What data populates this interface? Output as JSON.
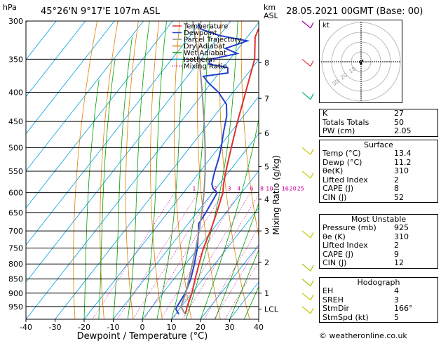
{
  "header": {
    "hpa_unit": "hPa",
    "location": "45°26'N  9°17'E  107m  ASL",
    "km_unit_1": "km",
    "km_unit_2": "ASL",
    "datetime": "28.05.2021  00GMT  (Base: 00)"
  },
  "legend": [
    {
      "label": "Temperature",
      "color": "#e03030",
      "dash": ""
    },
    {
      "label": "Dewpoint",
      "color": "#2040d0",
      "dash": ""
    },
    {
      "label": "Parcel Trajectory",
      "color": "#909090",
      "dash": ""
    },
    {
      "label": "Dry Adiabat",
      "color": "#e08000",
      "dash": ""
    },
    {
      "label": "Wet Adiabat",
      "color": "#00a000",
      "dash": ""
    },
    {
      "label": "Isotherm",
      "color": "#00a0e0",
      "dash": ""
    },
    {
      "label": "Mixing Ratio",
      "color": "#d000a0",
      "dash": "1,2"
    }
  ],
  "chart_data": {
    "type": "line",
    "xlabel": "Dewpoint / Temperature (°C)",
    "ylabel": "Mixing Ratio (g/kg)",
    "x_ticks": [
      -40,
      -30,
      -20,
      -10,
      0,
      10,
      20,
      30,
      40
    ],
    "pressure_levels": [
      300,
      350,
      400,
      450,
      500,
      550,
      600,
      650,
      700,
      750,
      800,
      850,
      900,
      950
    ],
    "xlim": [
      -40,
      40
    ],
    "ylim_hpa": [
      1000,
      300
    ],
    "y_scale": "log",
    "km_ticks": [
      {
        "label": "8",
        "p": 355
      },
      {
        "label": "7",
        "p": 410
      },
      {
        "label": "6",
        "p": 472
      },
      {
        "label": "5",
        "p": 540
      },
      {
        "label": "4",
        "p": 616
      },
      {
        "label": "3",
        "p": 700
      },
      {
        "label": "2",
        "p": 795
      },
      {
        "label": "1",
        "p": 900
      },
      {
        "label": "LCL",
        "p": 960
      }
    ],
    "mixing_ratio_labels": [
      {
        "label": "1",
        "x": -16.3
      },
      {
        "label": "2",
        "x": -9.0
      },
      {
        "label": "3",
        "x": -4.2
      },
      {
        "label": "4",
        "x": -0.9
      },
      {
        "label": "6",
        "x": 3.5
      },
      {
        "label": "8",
        "x": 7.0
      },
      {
        "label": "10",
        "x": 9.6
      },
      {
        "label": "16",
        "x": 15.0
      },
      {
        "label": "20",
        "x": 17.6
      },
      {
        "label": "25",
        "x": 20.3
      }
    ],
    "series": [
      {
        "name": "Temperature",
        "color": "#e03030",
        "points": [
          [
            13.4,
            980
          ],
          [
            12.0,
            950
          ],
          [
            10.0,
            900
          ],
          [
            7.3,
            850
          ],
          [
            4.6,
            800
          ],
          [
            1.8,
            750
          ],
          [
            -0.4,
            700
          ],
          [
            -3.2,
            650
          ],
          [
            -6.4,
            600
          ],
          [
            -8.5,
            580
          ],
          [
            -11.2,
            550
          ],
          [
            -15.7,
            500
          ],
          [
            -20.6,
            450
          ],
          [
            -25.7,
            400
          ],
          [
            -31.5,
            350
          ],
          [
            -37.3,
            320
          ],
          [
            -38.3,
            310
          ],
          [
            -38.7,
            300
          ]
        ]
      },
      {
        "name": "Dewpoint",
        "color": "#2040d0",
        "points": [
          [
            11.2,
            980
          ],
          [
            8.8,
            960
          ],
          [
            8.5,
            950
          ],
          [
            7.7,
            900
          ],
          [
            5.8,
            850
          ],
          [
            3.0,
            800
          ],
          [
            -0.3,
            750
          ],
          [
            -4.5,
            700
          ],
          [
            -6.4,
            680
          ],
          [
            -6.9,
            650
          ],
          [
            -8.4,
            600
          ],
          [
            -10.9,
            590
          ],
          [
            -12.5,
            580
          ],
          [
            -14.2,
            560
          ],
          [
            -15.0,
            550
          ],
          [
            -17.3,
            520
          ],
          [
            -19.2,
            500
          ],
          [
            -22.5,
            470
          ],
          [
            -25.8,
            440
          ],
          [
            -29.0,
            420
          ],
          [
            -35.0,
            400
          ],
          [
            -41.0,
            385
          ],
          [
            -44.5,
            375
          ],
          [
            -37.0,
            370
          ],
          [
            -38.5,
            362
          ],
          [
            -46.0,
            357
          ],
          [
            -46.5,
            350
          ],
          [
            -39.0,
            342
          ],
          [
            -44.5,
            335
          ],
          [
            -39.0,
            325
          ],
          [
            -50.0,
            318
          ],
          [
            -58.0,
            310
          ],
          [
            -60.5,
            303
          ]
        ]
      },
      {
        "name": "Parcel Trajectory",
        "color": "#909090",
        "points": [
          [
            13.4,
            980
          ],
          [
            11.0,
            960
          ],
          [
            9.8,
            950
          ],
          [
            7.9,
            900
          ],
          [
            5.2,
            850
          ],
          [
            2.3,
            800
          ],
          [
            -0.8,
            750
          ],
          [
            -4.3,
            700
          ],
          [
            -8.3,
            650
          ],
          [
            -12.9,
            600
          ],
          [
            -18.3,
            550
          ],
          [
            -24.7,
            500
          ],
          [
            -32.1,
            450
          ],
          [
            -40.6,
            400
          ],
          [
            -50.5,
            350
          ],
          [
            -58.0,
            320
          ],
          [
            -63.0,
            300
          ]
        ]
      }
    ],
    "wind_barbs": [
      {
        "p": 300,
        "color": "#a000a0"
      },
      {
        "p": 350,
        "color": "#e03030"
      },
      {
        "p": 400,
        "color": "#00b070"
      },
      {
        "p": 500,
        "color": "#c8c800"
      },
      {
        "p": 550,
        "color": "#c8c800"
      },
      {
        "p": 700,
        "color": "#c8c800"
      },
      {
        "p": 800,
        "color": "#a0c800"
      },
      {
        "p": 850,
        "color": "#a0c800"
      },
      {
        "p": 900,
        "color": "#c8c800"
      },
      {
        "p": 950,
        "color": "#c8c800"
      }
    ],
    "hodograph": {
      "unit_label": "kt",
      "ring_labels": [
        "10",
        "20",
        "30"
      ]
    }
  },
  "indices": {
    "rows": [
      {
        "k": "K",
        "v": "27"
      },
      {
        "k": "Totals Totals",
        "v": "50"
      },
      {
        "k": "PW (cm)",
        "v": "2.05"
      }
    ]
  },
  "surface": {
    "title": "Surface",
    "rows": [
      {
        "k": "Temp (°C)",
        "v": "13.4"
      },
      {
        "k": "Dewp (°C)",
        "v": "11.2"
      },
      {
        "k": "θe(K)",
        "v": "310"
      },
      {
        "k": "Lifted Index",
        "v": "2"
      },
      {
        "k": "CAPE (J)",
        "v": "8"
      },
      {
        "k": "CIN (J)",
        "v": "52"
      }
    ]
  },
  "most_unstable": {
    "title": "Most Unstable",
    "rows": [
      {
        "k": "Pressure (mb)",
        "v": "925"
      },
      {
        "k": "θe (K)",
        "v": "310"
      },
      {
        "k": "Lifted Index",
        "v": "2"
      },
      {
        "k": "CAPE (J)",
        "v": "9"
      },
      {
        "k": "CIN (J)",
        "v": "12"
      }
    ]
  },
  "hodograph_table": {
    "title": "Hodograph",
    "rows": [
      {
        "k": "EH",
        "v": "4"
      },
      {
        "k": "SREH",
        "v": "3"
      },
      {
        "k": "StmDir",
        "v": "166°"
      },
      {
        "k": "StmSpd (kt)",
        "v": "5"
      }
    ]
  },
  "footer": "© weatheronline.co.uk"
}
